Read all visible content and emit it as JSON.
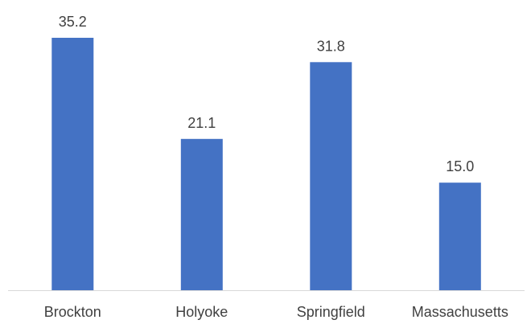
{
  "chart_data": {
    "type": "bar",
    "categories": [
      "Brockton",
      "Holyoke",
      "Springfield",
      "Massachusetts"
    ],
    "values": [
      35.2,
      21.1,
      31.8,
      15.0
    ],
    "value_labels": [
      "35.2",
      "21.1",
      "31.8",
      "15.0"
    ],
    "title": "",
    "xlabel": "",
    "ylabel": "",
    "ylim": [
      0,
      40
    ],
    "grid": false,
    "legend": "none",
    "bar_color": "#4472C4",
    "axis_color": "#D9D9D9"
  }
}
